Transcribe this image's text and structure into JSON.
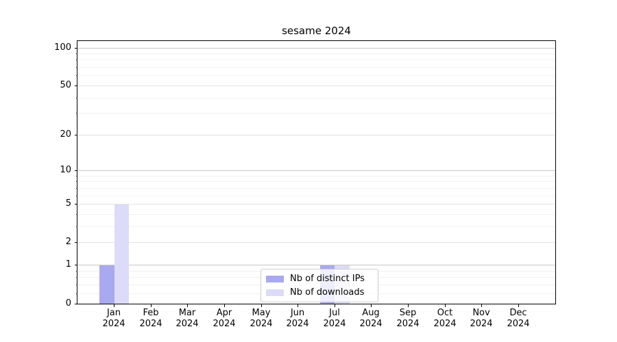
{
  "chart_data": {
    "type": "bar",
    "title": "sesame 2024",
    "categories": [
      "Jan",
      "Feb",
      "Mar",
      "Apr",
      "May",
      "Jun",
      "Jul",
      "Aug",
      "Sep",
      "Oct",
      "Nov",
      "Dec"
    ],
    "category_year": "2024",
    "series": [
      {
        "name": "Nb of distinct IPs",
        "color": "#a9a9f0",
        "values": [
          1,
          0,
          0,
          0,
          0,
          0,
          1,
          0,
          0,
          0,
          0,
          0
        ]
      },
      {
        "name": "Nb of downloads",
        "color": "#dcdcf8",
        "values": [
          5,
          0,
          0,
          0,
          0,
          0,
          1,
          0,
          0,
          0,
          0,
          0
        ]
      }
    ],
    "yaxis": {
      "scale": "log1p",
      "labeled_ticks": [
        0,
        1,
        2,
        5,
        10,
        20,
        50,
        100
      ],
      "emphasized_gridlines": [
        1,
        10,
        100
      ],
      "minor_gridlines": [
        0.2,
        0.4,
        0.6,
        0.8,
        3,
        4,
        6,
        7,
        8,
        9,
        30,
        40,
        60,
        70,
        80,
        90
      ],
      "ylim": [
        0,
        113
      ]
    },
    "xlabel": "",
    "ylabel": "",
    "grid": true,
    "legend_position": "lower center"
  }
}
